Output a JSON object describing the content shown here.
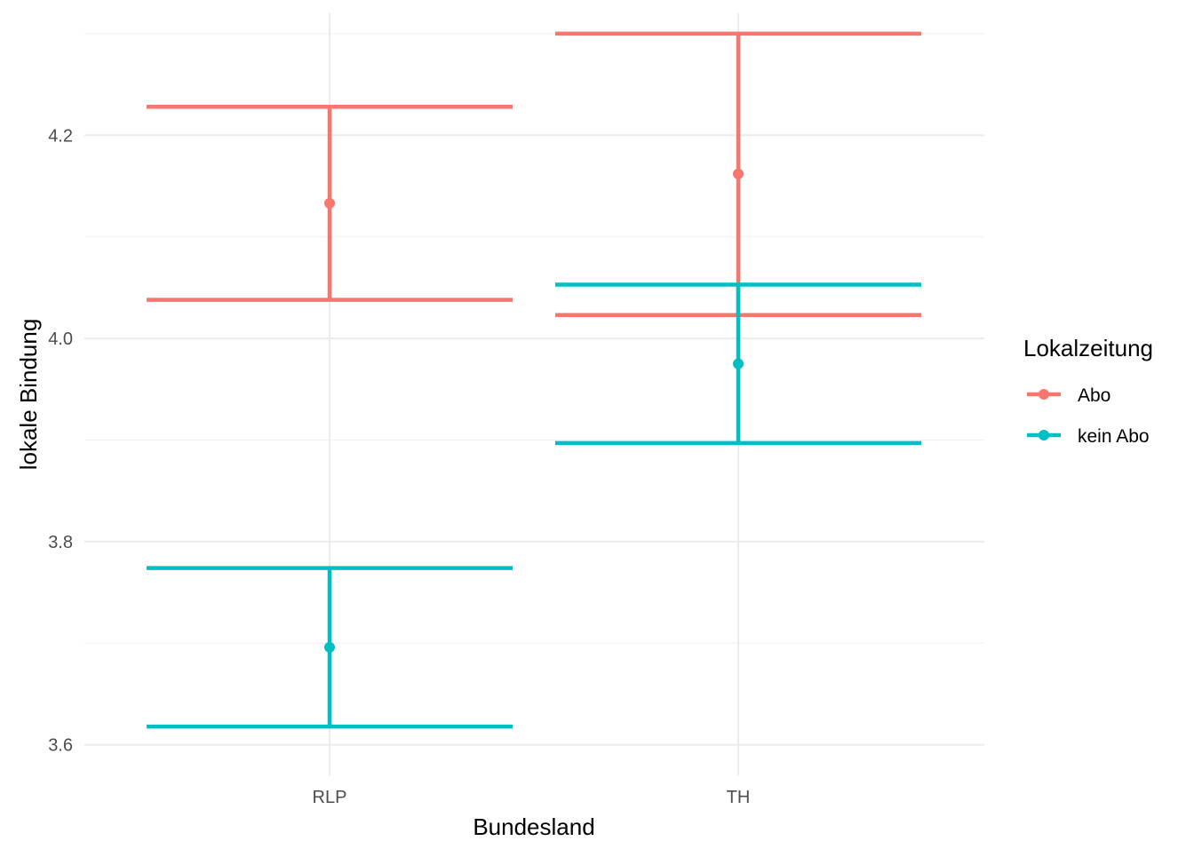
{
  "chart_data": {
    "type": "errorbar",
    "title": "",
    "xlabel": "Bundesland",
    "ylabel": "lokale Bindung",
    "categories": [
      "RLP",
      "TH"
    ],
    "ylim": [
      3.57,
      4.32
    ],
    "y_ticks": [
      3.6,
      3.8,
      4.0,
      4.2
    ],
    "y_tick_labels": [
      "3.6",
      "3.8",
      "4.0",
      "4.2"
    ],
    "grid": true,
    "legend": {
      "title": "Lokalzeitung",
      "placement": "right"
    },
    "series": [
      {
        "name": "Abo",
        "color": "#F8766D",
        "points": [
          {
            "x": "RLP",
            "mean": 4.133,
            "lower": 4.038,
            "upper": 4.228
          },
          {
            "x": "TH",
            "mean": 4.162,
            "lower": 4.023,
            "upper": 4.3
          }
        ]
      },
      {
        "name": "kein Abo",
        "color": "#00BFC4",
        "points": [
          {
            "x": "RLP",
            "mean": 3.696,
            "lower": 3.618,
            "upper": 3.774
          },
          {
            "x": "TH",
            "mean": 3.975,
            "lower": 3.897,
            "upper": 4.053
          }
        ]
      }
    ]
  }
}
